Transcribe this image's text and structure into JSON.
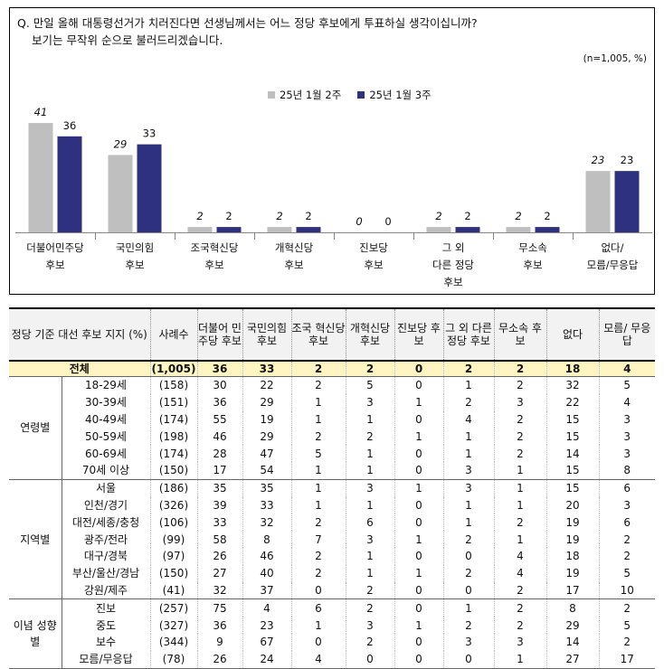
{
  "question": {
    "line1": "Q. 만일 올해 대통령선거가 치러진다면 선생님께서는 어느 정당 후보에게 투표하실 생각이십니까?",
    "line2": "보기는 무작위 순으로 불러드리겠습니다."
  },
  "sample_note": "(n=1,005,  %)",
  "chart_data": {
    "type": "bar",
    "categories": [
      [
        "더불어민주당",
        "후보"
      ],
      [
        "국민의힘",
        "후보"
      ],
      [
        "조국혁신당",
        "후보"
      ],
      [
        "개혁신당",
        "후보"
      ],
      [
        "진보당",
        "후보"
      ],
      [
        "그 외",
        "다른 정당",
        "후보"
      ],
      [
        "무소속",
        "후보"
      ],
      [
        "없다/",
        "모름/무응답"
      ]
    ],
    "series": [
      {
        "name": "25년 1월 2주",
        "color": "#bfbfbf",
        "values": [
          41,
          29,
          2,
          2,
          0,
          2,
          2,
          23
        ]
      },
      {
        "name": "25년 1월 3주",
        "color": "#2e3180",
        "values": [
          36,
          33,
          2,
          2,
          0,
          2,
          2,
          23
        ]
      }
    ],
    "ylim": [
      0,
      50
    ]
  },
  "table": {
    "headers": [
      "정당 기준 대선 후보 지지 (%)",
      "사례수",
      "더불어 민주당 후보",
      "국민의힘 후보",
      "조국 혁신당 후보",
      "개혁신당 후보",
      "진보당 후보",
      "그 외 다른 정당 후보",
      "무소속 후보",
      "없다",
      "모름/ 무응답"
    ],
    "total": {
      "label": "전체",
      "n": "(1,005)",
      "values": [
        "36",
        "33",
        "2",
        "2",
        "0",
        "2",
        "2",
        "18",
        "4"
      ]
    },
    "groups": [
      {
        "name": "연령별",
        "rows": [
          {
            "label": "18-29세",
            "n": "(158)",
            "values": [
              "30",
              "22",
              "2",
              "5",
              "0",
              "1",
              "2",
              "32",
              "5"
            ]
          },
          {
            "label": "30-39세",
            "n": "(151)",
            "values": [
              "36",
              "29",
              "1",
              "3",
              "1",
              "2",
              "3",
              "22",
              "4"
            ]
          },
          {
            "label": "40-49세",
            "n": "(174)",
            "values": [
              "55",
              "19",
              "1",
              "1",
              "0",
              "4",
              "2",
              "15",
              "3"
            ]
          },
          {
            "label": "50-59세",
            "n": "(198)",
            "values": [
              "46",
              "29",
              "2",
              "2",
              "1",
              "1",
              "2",
              "15",
              "3"
            ]
          },
          {
            "label": "60-69세",
            "n": "(174)",
            "values": [
              "28",
              "47",
              "5",
              "1",
              "0",
              "1",
              "2",
              "14",
              "3"
            ]
          },
          {
            "label": "70세 이상",
            "n": "(150)",
            "values": [
              "17",
              "54",
              "1",
              "1",
              "0",
              "3",
              "1",
              "15",
              "8"
            ]
          }
        ]
      },
      {
        "name": "지역별",
        "rows": [
          {
            "label": "서울",
            "n": "(186)",
            "values": [
              "35",
              "35",
              "1",
              "3",
              "1",
              "3",
              "1",
              "15",
              "6"
            ]
          },
          {
            "label": "인천/경기",
            "n": "(326)",
            "values": [
              "39",
              "33",
              "1",
              "1",
              "0",
              "1",
              "1",
              "20",
              "3"
            ]
          },
          {
            "label": "대전/세종/충청",
            "n": "(106)",
            "values": [
              "33",
              "32",
              "2",
              "6",
              "0",
              "1",
              "2",
              "19",
              "6"
            ]
          },
          {
            "label": "광주/전라",
            "n": "(99)",
            "values": [
              "58",
              "8",
              "7",
              "3",
              "1",
              "2",
              "1",
              "19",
              "2"
            ]
          },
          {
            "label": "대구/경북",
            "n": "(97)",
            "values": [
              "26",
              "46",
              "2",
              "1",
              "0",
              "0",
              "4",
              "18",
              "2"
            ]
          },
          {
            "label": "부산/울산/경남",
            "n": "(150)",
            "values": [
              "27",
              "40",
              "2",
              "1",
              "1",
              "2",
              "4",
              "19",
              "5"
            ]
          },
          {
            "label": "강원/제주",
            "n": "(41)",
            "values": [
              "32",
              "37",
              "0",
              "2",
              "0",
              "0",
              "2",
              "17",
              "10"
            ]
          }
        ]
      },
      {
        "name": "이념 성향별",
        "rows": [
          {
            "label": "진보",
            "n": "(257)",
            "values": [
              "75",
              "4",
              "6",
              "2",
              "0",
              "1",
              "2",
              "8",
              "2"
            ]
          },
          {
            "label": "중도",
            "n": "(327)",
            "values": [
              "36",
              "23",
              "1",
              "3",
              "1",
              "2",
              "2",
              "29",
              "5"
            ]
          },
          {
            "label": "보수",
            "n": "(344)",
            "values": [
              "9",
              "67",
              "0",
              "2",
              "0",
              "3",
              "3",
              "14",
              "2"
            ]
          },
          {
            "label": "모름/무응답",
            "n": "(78)",
            "values": [
              "26",
              "24",
              "4",
              "0",
              "0",
              "0",
              "1",
              "27",
              "17"
            ]
          }
        ]
      }
    ]
  }
}
